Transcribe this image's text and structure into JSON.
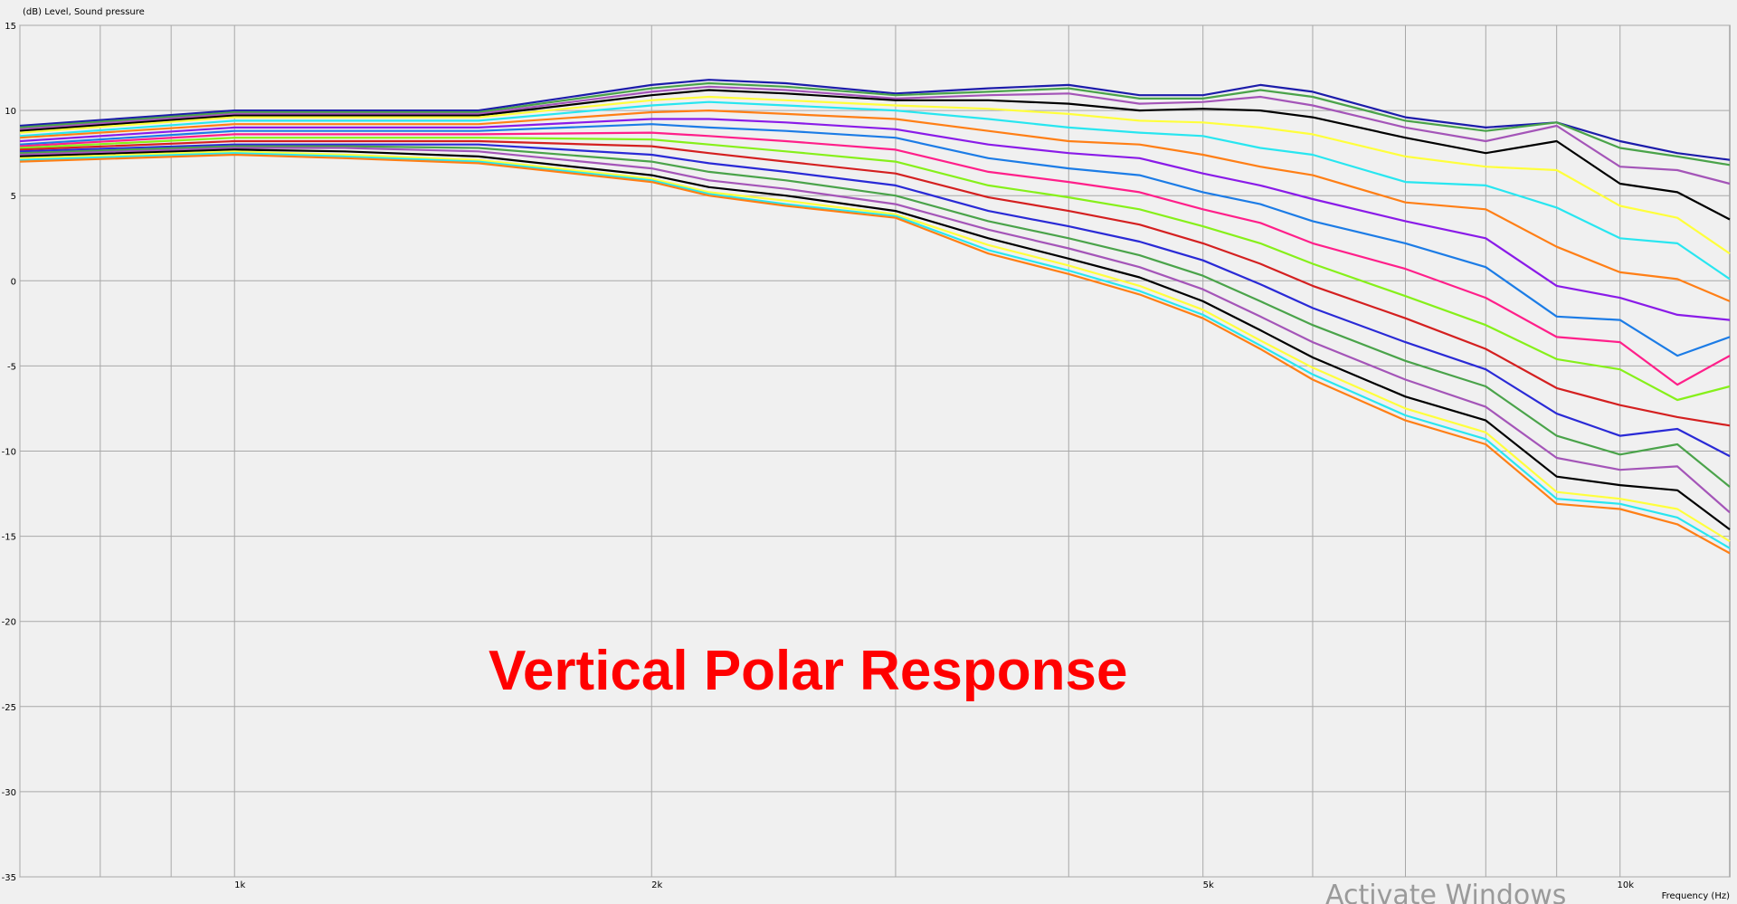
{
  "chart_data": {
    "type": "line",
    "ylabel": "(dB)  Level, Sound pressure",
    "xlabel": "Frequency  (Hz)",
    "xscale": "log",
    "xlim": [
      700,
      12000
    ],
    "ylim": [
      -35,
      15
    ],
    "grid": true,
    "yticks": [
      15,
      10,
      5,
      0,
      -5,
      -10,
      -15,
      -20,
      -25,
      -30,
      -35
    ],
    "xticks": [
      {
        "value": 1000,
        "label": "1k"
      },
      {
        "value": 2000,
        "label": "2k"
      },
      {
        "value": 5000,
        "label": "5k"
      },
      {
        "value": 10000,
        "label": "10k"
      }
    ],
    "x": [
      700,
      1000,
      1200,
      1500,
      2000,
      2200,
      2500,
      3000,
      3500,
      4000,
      4500,
      5000,
      5500,
      6000,
      7000,
      8000,
      9000,
      10000,
      11000,
      12000
    ],
    "series": [
      {
        "color": "#1c1caa",
        "values": [
          9.1,
          10.0,
          10.0,
          10.0,
          11.5,
          11.8,
          11.6,
          11.0,
          11.3,
          11.5,
          10.9,
          10.9,
          11.5,
          11.1,
          9.6,
          9.0,
          9.3,
          8.2,
          7.5,
          7.1
        ]
      },
      {
        "color": "#4aa34a",
        "values": [
          9.0,
          9.9,
          9.9,
          9.9,
          11.3,
          11.6,
          11.4,
          10.9,
          11.1,
          11.3,
          10.7,
          10.7,
          11.2,
          10.8,
          9.4,
          8.8,
          9.3,
          7.8,
          7.3,
          6.8
        ]
      },
      {
        "color": "#a455b8",
        "values": [
          8.9,
          9.8,
          9.8,
          9.8,
          11.1,
          11.4,
          11.2,
          10.7,
          10.9,
          11.0,
          10.4,
          10.5,
          10.8,
          10.3,
          9.0,
          8.2,
          9.1,
          6.7,
          6.5,
          5.7
        ]
      },
      {
        "color": "#000000",
        "values": [
          8.8,
          9.7,
          9.7,
          9.7,
          10.9,
          11.2,
          11.0,
          10.6,
          10.6,
          10.4,
          10.0,
          10.1,
          10.0,
          9.6,
          8.4,
          7.5,
          8.2,
          5.7,
          5.2,
          3.6
        ]
      },
      {
        "color": "#ffff3c",
        "values": [
          8.7,
          9.6,
          9.6,
          9.6,
          10.6,
          10.8,
          10.6,
          10.3,
          10.1,
          9.8,
          9.4,
          9.3,
          9.0,
          8.6,
          7.3,
          6.7,
          6.5,
          4.4,
          3.7,
          1.6
        ]
      },
      {
        "color": "#28e6f0",
        "values": [
          8.5,
          9.4,
          9.4,
          9.4,
          10.3,
          10.5,
          10.3,
          10.0,
          9.5,
          9.0,
          8.7,
          8.5,
          7.8,
          7.4,
          5.8,
          5.6,
          4.3,
          2.5,
          2.2,
          0.1
        ]
      },
      {
        "color": "#ff7f16",
        "values": [
          8.4,
          9.2,
          9.2,
          9.2,
          9.9,
          10.0,
          9.8,
          9.5,
          8.8,
          8.2,
          8.0,
          7.4,
          6.7,
          6.2,
          4.6,
          4.2,
          2.0,
          0.5,
          0.1,
          -1.2
        ]
      },
      {
        "color": "#8a1be8",
        "values": [
          8.2,
          9.0,
          9.0,
          9.0,
          9.5,
          9.5,
          9.3,
          8.9,
          8.0,
          7.5,
          7.2,
          6.3,
          5.6,
          4.8,
          3.5,
          2.5,
          -0.3,
          -1.0,
          -2.0,
          -2.3
        ]
      },
      {
        "color": "#1c7ce6",
        "values": [
          8.0,
          8.8,
          8.8,
          8.8,
          9.2,
          9.0,
          8.8,
          8.4,
          7.2,
          6.6,
          6.2,
          5.2,
          4.5,
          3.5,
          2.2,
          0.8,
          -2.1,
          -2.3,
          -4.4,
          -3.3
        ]
      },
      {
        "color": "#ff1f8a",
        "values": [
          7.9,
          8.6,
          8.6,
          8.6,
          8.7,
          8.5,
          8.2,
          7.7,
          6.4,
          5.8,
          5.2,
          4.2,
          3.4,
          2.2,
          0.7,
          -1.0,
          -3.3,
          -3.6,
          -6.1,
          -4.4
        ]
      },
      {
        "color": "#86f01a",
        "values": [
          7.8,
          8.4,
          8.4,
          8.4,
          8.3,
          8.0,
          7.6,
          7.0,
          5.6,
          4.9,
          4.2,
          3.2,
          2.2,
          1.0,
          -0.9,
          -2.6,
          -4.6,
          -5.2,
          -7.0,
          -6.2
        ]
      },
      {
        "color": "#d42020",
        "values": [
          7.7,
          8.2,
          8.2,
          8.2,
          7.9,
          7.5,
          7.0,
          6.3,
          4.9,
          4.1,
          3.3,
          2.2,
          1.0,
          -0.3,
          -2.2,
          -4.0,
          -6.3,
          -7.3,
          -8.0,
          -8.5
        ]
      },
      {
        "color": "#2a2ad6",
        "values": [
          7.6,
          8.0,
          8.0,
          8.0,
          7.4,
          6.9,
          6.4,
          5.6,
          4.1,
          3.2,
          2.3,
          1.2,
          -0.2,
          -1.6,
          -3.6,
          -5.2,
          -7.8,
          -9.1,
          -8.7,
          -10.3
        ]
      },
      {
        "color": "#4aa34a",
        "values": [
          7.5,
          7.9,
          7.9,
          7.8,
          7.0,
          6.4,
          5.9,
          5.0,
          3.5,
          2.5,
          1.5,
          0.3,
          -1.2,
          -2.6,
          -4.7,
          -6.2,
          -9.1,
          -10.2,
          -9.6,
          -12.1
        ]
      },
      {
        "color": "#a455b8",
        "values": [
          7.4,
          7.8,
          7.8,
          7.6,
          6.6,
          5.9,
          5.4,
          4.5,
          3.0,
          1.9,
          0.8,
          -0.5,
          -2.1,
          -3.6,
          -5.8,
          -7.4,
          -10.4,
          -11.1,
          -10.9,
          -13.6
        ]
      },
      {
        "color": "#000000",
        "values": [
          7.3,
          7.7,
          7.6,
          7.3,
          6.2,
          5.5,
          5.0,
          4.1,
          2.5,
          1.3,
          0.2,
          -1.2,
          -2.9,
          -4.5,
          -6.8,
          -8.2,
          -11.5,
          -12.0,
          -12.3,
          -14.6
        ]
      },
      {
        "color": "#ffff3c",
        "values": [
          7.2,
          7.6,
          7.4,
          7.1,
          6.0,
          5.2,
          4.7,
          3.9,
          2.1,
          0.9,
          -0.3,
          -1.7,
          -3.5,
          -5.1,
          -7.5,
          -8.9,
          -12.4,
          -12.8,
          -13.4,
          -15.3
        ]
      },
      {
        "color": "#28e6f0",
        "values": [
          7.1,
          7.5,
          7.3,
          7.0,
          5.9,
          5.1,
          4.5,
          3.8,
          1.8,
          0.6,
          -0.6,
          -2.0,
          -3.8,
          -5.5,
          -7.9,
          -9.3,
          -12.8,
          -13.1,
          -13.9,
          -15.7
        ]
      },
      {
        "color": "#ff7f16",
        "values": [
          7.0,
          7.4,
          7.2,
          6.9,
          5.8,
          5.0,
          4.4,
          3.7,
          1.6,
          0.4,
          -0.8,
          -2.2,
          -4.0,
          -5.8,
          -8.2,
          -9.6,
          -13.1,
          -13.4,
          -14.3,
          -16.0
        ]
      }
    ]
  },
  "overlay_title": "Vertical Polar Response",
  "watermark": "Activate Windows"
}
